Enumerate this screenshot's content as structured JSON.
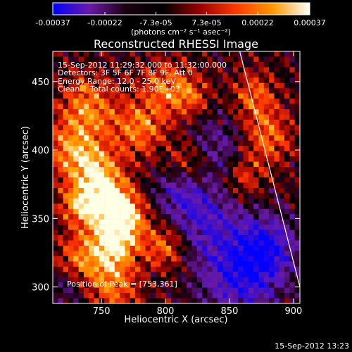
{
  "chart_data": {
    "type": "heatmap",
    "title": "Reconstructed RHESSI Image",
    "xlabel": "Heliocentric X (arcsec)",
    "ylabel": "Heliocentric Y (arcsec)",
    "xlim": [
      712,
      905
    ],
    "ylim": [
      288,
      472
    ],
    "x_ticks": [
      750,
      800,
      850,
      900
    ],
    "y_ticks": [
      300,
      350,
      400,
      450
    ],
    "x_tick_labels": [
      "750",
      "800",
      "850",
      "900"
    ],
    "y_tick_labels": [
      "300",
      "350",
      "400",
      "450"
    ],
    "colorbar": {
      "range": [
        -0.00037,
        0.00037
      ],
      "tick_values": [
        -0.00037,
        -0.00022,
        -7.3e-05,
        7.3e-05,
        0.00022,
        0.00037
      ],
      "tick_labels": [
        "-0.00037",
        "-0.00022",
        "-7.3e-05",
        "7.3e-05",
        "0.00022",
        "0.00037"
      ],
      "unit_label": "(photons cm⁻² s⁻¹ asec⁻²)",
      "colors": [
        "#0000ff",
        "#6a1aa8",
        "#1a0010",
        "#000000",
        "#9a0000",
        "#ff3a00",
        "#ff9a00",
        "#ffffff"
      ]
    },
    "annotations": {
      "time_range": "15-Sep-2012 11:29:32.000 to 11:32:00.000",
      "detectors": "Detectors: 3F 5F 6F 7F 8F 9F, Att 0",
      "energy": "Energy Range: 12.0 - 25.0 keV",
      "clean_label": "Clean",
      "counts": "Total counts: 1.90E+03",
      "peak": "Position of Peak = [753,361]"
    },
    "peak": [
      753,
      361
    ],
    "limb_line": [
      [
        858,
        472
      ],
      [
        905,
        300
      ]
    ],
    "grid": false
  },
  "footer": {
    "timestamp": "15-Sep-2012 13:23"
  }
}
